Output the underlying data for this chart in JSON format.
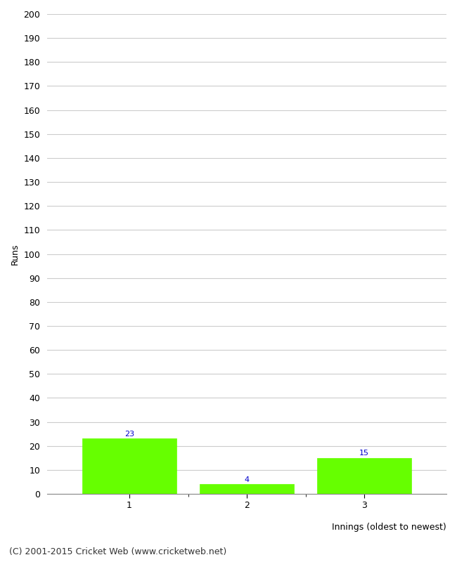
{
  "categories": [
    "1",
    "2",
    "3"
  ],
  "values": [
    23,
    4,
    15
  ],
  "bar_color": "#66ff00",
  "bar_edge_color": "#66ff00",
  "value_label_color": "#0000cc",
  "ylabel": "Runs",
  "xlabel": "Innings (oldest to newest)",
  "ylim": [
    0,
    200
  ],
  "yticks": [
    0,
    10,
    20,
    30,
    40,
    50,
    60,
    70,
    80,
    90,
    100,
    110,
    120,
    130,
    140,
    150,
    160,
    170,
    180,
    190,
    200
  ],
  "footer": "(C) 2001-2015 Cricket Web (www.cricketweb.net)",
  "background_color": "#ffffff",
  "grid_color": "#cccccc",
  "value_fontsize": 8,
  "label_fontsize": 9,
  "tick_fontsize": 9,
  "footer_fontsize": 9
}
